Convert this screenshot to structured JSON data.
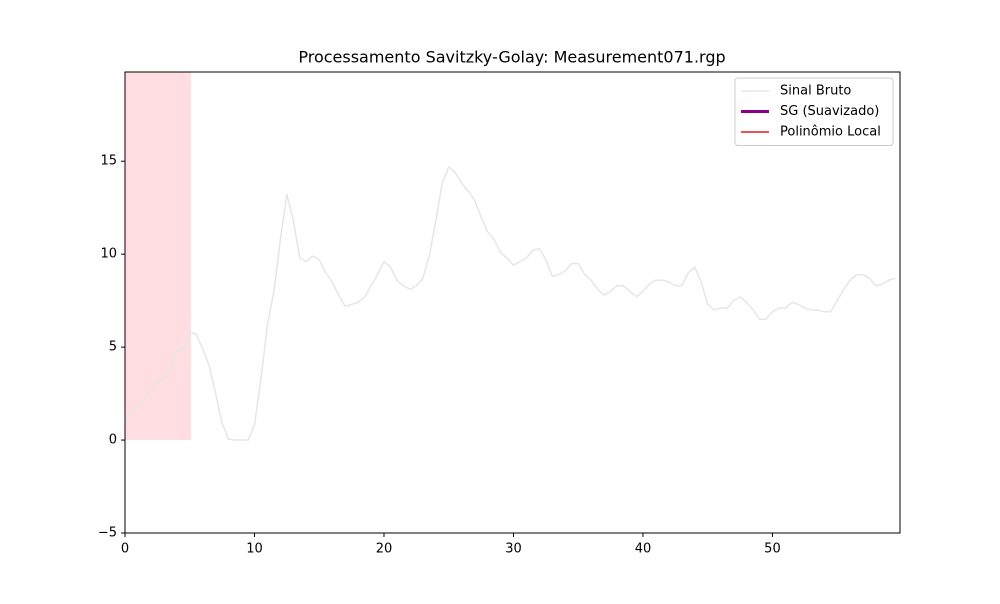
{
  "chart_data": {
    "type": "line",
    "title": "Processamento Savitzky-Golay: Measurement071.rgp",
    "x": [
      0,
      0.5,
      1,
      1.5,
      2,
      2.5,
      3,
      3.5,
      4,
      4.5,
      5,
      5.5,
      6,
      6.5,
      7,
      7.5,
      8,
      8.5,
      9,
      9.5,
      10,
      10.5,
      11,
      11.5,
      12,
      12.5,
      13,
      13.5,
      14,
      14.5,
      15,
      15.5,
      16,
      16.5,
      17,
      17.5,
      18,
      18.5,
      19,
      19.5,
      20,
      20.5,
      21,
      21.5,
      22,
      22.5,
      23,
      23.5,
      24,
      24.5,
      25,
      25.5,
      26,
      26.5,
      27,
      27.5,
      28,
      28.5,
      29,
      29.5,
      30,
      30.5,
      31,
      31.5,
      32,
      32.5,
      33,
      33.5,
      34,
      34.5,
      35,
      35.5,
      36,
      36.5,
      37,
      37.5,
      38,
      38.5,
      39,
      39.5,
      40,
      40.5,
      41,
      41.5,
      42,
      42.5,
      43,
      43.5,
      44,
      44.5,
      45,
      45.5,
      46,
      46.5,
      47,
      47.5,
      48,
      48.5,
      49,
      49.5,
      50,
      50.5,
      51,
      51.5,
      52,
      52.5,
      53,
      53.5,
      54,
      54.5,
      55,
      55.5,
      56,
      56.5,
      57,
      57.5,
      58,
      58.5,
      59,
      59.5
    ],
    "series": [
      {
        "name": "Sinal Bruto",
        "color": "#e6e6e6",
        "width": 1.5,
        "values": [
          1.0,
          1.5,
          1.7,
          2.2,
          2.7,
          3.1,
          3.3,
          3.8,
          4.8,
          4.9,
          5.8,
          5.7,
          4.9,
          4.0,
          2.5,
          0.9,
          0.05,
          0,
          0,
          0,
          0.8,
          3.3,
          6.2,
          8.0,
          10.8,
          13.2,
          11.8,
          9.8,
          9.6,
          9.9,
          9.7,
          9.0,
          8.5,
          7.8,
          7.2,
          7.3,
          7.4,
          7.7,
          8.3,
          8.9,
          9.6,
          9.3,
          8.6,
          8.3,
          8.1,
          8.3,
          8.7,
          9.9,
          11.8,
          13.8,
          14.7,
          14.4,
          13.8,
          13.4,
          12.9,
          12.0,
          11.2,
          10.8,
          10.1,
          9.8,
          9.4,
          9.6,
          9.8,
          10.2,
          10.3,
          9.7,
          8.8,
          8.9,
          9.1,
          9.5,
          9.5,
          8.9,
          8.6,
          8.1,
          7.8,
          8.0,
          8.3,
          8.3,
          8.0,
          7.7,
          8.0,
          8.4,
          8.6,
          8.6,
          8.5,
          8.3,
          8.3,
          9.0,
          9.3,
          8.5,
          7.3,
          7.0,
          7.1,
          7.1,
          7.5,
          7.7,
          7.4,
          7.0,
          6.5,
          6.5,
          6.9,
          7.1,
          7.1,
          7.4,
          7.3,
          7.1,
          7.0,
          7.0,
          6.9,
          6.9,
          7.5,
          8.1,
          8.6,
          8.9,
          8.9,
          8.7,
          8.3,
          8.4,
          8.6,
          8.7
        ]
      },
      {
        "name": "SG (Suavizado)",
        "color": "#8b008b",
        "width": 3,
        "values": [
          null,
          null,
          null,
          null,
          null,
          null,
          null,
          null,
          null,
          null,
          null,
          null,
          null,
          null,
          null,
          null,
          null,
          null,
          null,
          null,
          null,
          null,
          null,
          null,
          null,
          null,
          null,
          null,
          null,
          null,
          null,
          null,
          null,
          null,
          null,
          null,
          null,
          null,
          null,
          null,
          null,
          null,
          null,
          null,
          null,
          null,
          null,
          null,
          null,
          null,
          null,
          null,
          null,
          null,
          null,
          null,
          null,
          null,
          null,
          null,
          null,
          null,
          null,
          null,
          null,
          null,
          null,
          null,
          null,
          null,
          null,
          null,
          null,
          null,
          null,
          null,
          null,
          null,
          null,
          null,
          null,
          null,
          null,
          null,
          null,
          null,
          null,
          null,
          null,
          null,
          null,
          null,
          null,
          null,
          null,
          null,
          null,
          null,
          null,
          null,
          null,
          null,
          null,
          null,
          null,
          null,
          null,
          null,
          null,
          null,
          null,
          null,
          null,
          null,
          null,
          null,
          null,
          null,
          null,
          null
        ]
      },
      {
        "name": "Polinômio Local",
        "color": "#e41a1c",
        "width": 1.5,
        "values": [
          null,
          null,
          null,
          null,
          null,
          null,
          null,
          null,
          null,
          null,
          null,
          null,
          null,
          null,
          null,
          null,
          null,
          null,
          null,
          null,
          null,
          null,
          null,
          null,
          null,
          null,
          null,
          null,
          null,
          null,
          null,
          null,
          null,
          null,
          null,
          null,
          null,
          null,
          null,
          null,
          null,
          null,
          null,
          null,
          null,
          null,
          null,
          null,
          null,
          null,
          null,
          null,
          null,
          null,
          null,
          null,
          null,
          null,
          null,
          null,
          null,
          null,
          null,
          null,
          null,
          null,
          null,
          null,
          null,
          null,
          null,
          null,
          null,
          null,
          null,
          null,
          null,
          null,
          null,
          null,
          null,
          null,
          null,
          null,
          null,
          null,
          null,
          null,
          null,
          null,
          null,
          null,
          null,
          null,
          null,
          null,
          null,
          null,
          null,
          null,
          null,
          null,
          null,
          null,
          null,
          null,
          null,
          null,
          null,
          null,
          null,
          null,
          null,
          null,
          null,
          null,
          null,
          null,
          null,
          null
        ]
      }
    ],
    "highlight": {
      "xlim": [
        0,
        5.1
      ],
      "ylim": [
        0,
        19.8
      ],
      "color": "#ffdde1"
    },
    "xlim": [
      0,
      59.85
    ],
    "xticks": [
      0,
      10,
      20,
      30,
      40,
      50
    ],
    "ylim": [
      -5,
      19.8
    ],
    "yticks": [
      {
        "value": -5,
        "label": "−5"
      },
      0,
      5,
      10,
      15
    ],
    "legend": "upper right"
  }
}
